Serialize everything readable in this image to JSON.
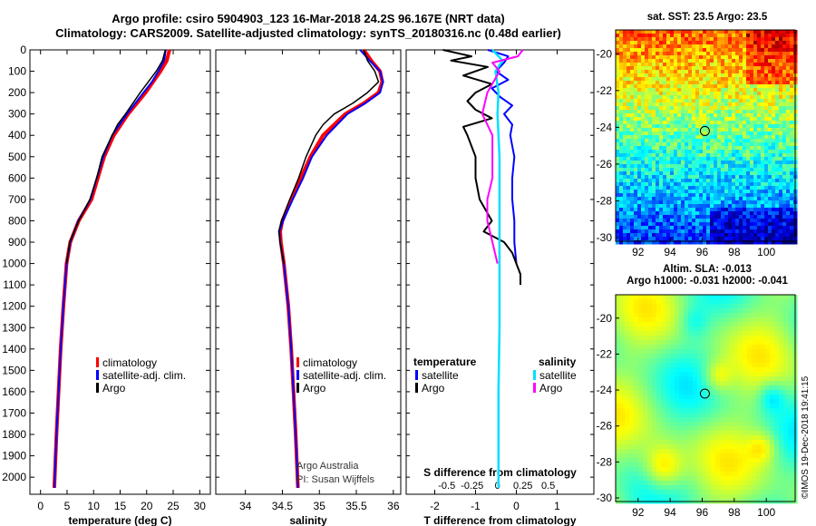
{
  "header": {
    "title_line1": "Argo profile: csiro 5904903_123 16-Mar-2018 24.2S 96.167E (NRT data)",
    "title_line2": "Climatology: CARS2009. Satellite-adjusted climatology: synTS_20180316.nc (0.48d earlier)"
  },
  "maps": {
    "sst_title": "sat. SST: 23.5 Argo: 23.5",
    "sla_title": "Altim. SLA: -0.013",
    "sla_subtitle": "Argo h1000: -0.031 h2000: -0.041",
    "lat_ticks": [
      "-20",
      "-22",
      "-24",
      "-26",
      "-28",
      "-30"
    ],
    "lon_ticks": [
      "92",
      "94",
      "96",
      "98",
      "100"
    ],
    "profile_marker": {
      "lon": 96.167,
      "lat": -24.2
    }
  },
  "credit": "©IMOS 19-Dec-2018 19:41:15",
  "attribution": {
    "line1": "Argo Australia",
    "line2": "PI: Susan Wijffels"
  },
  "colors": {
    "climatology": "#ff0000",
    "satellite": "#0000ff",
    "argo": "#000000",
    "sat_salinity": "#00e0ff",
    "argo_salinity": "#ff00ff"
  },
  "chart_data": [
    {
      "type": "line",
      "title": "",
      "xlabel": "temperature (deg C)",
      "ylabel": "",
      "xlim": [
        -2,
        32
      ],
      "ylim": [
        2080,
        0
      ],
      "xticks": [
        0,
        5,
        10,
        15,
        20,
        25,
        30
      ],
      "yticks": [
        0,
        100,
        200,
        300,
        400,
        500,
        600,
        700,
        800,
        900,
        1000,
        1100,
        1200,
        1300,
        1400,
        1500,
        1600,
        1700,
        1800,
        1900,
        2000
      ],
      "legend": [
        "climatology",
        "satellite-adj. clim.",
        "Argo"
      ],
      "series": [
        {
          "name": "climatology",
          "depth": [
            0,
            50,
            100,
            150,
            200,
            300,
            400,
            500,
            600,
            700,
            800,
            900,
            1000,
            1200,
            1400,
            1600,
            1800,
            2050
          ],
          "values": [
            24.3,
            23.8,
            22.6,
            21.2,
            19.8,
            16.5,
            13.8,
            12.0,
            10.8,
            9.6,
            7.2,
            5.6,
            4.9,
            4.3,
            3.8,
            3.4,
            3.0,
            2.6
          ]
        },
        {
          "name": "satellite-adj. clim.",
          "depth": [
            0,
            50,
            100,
            150,
            200,
            300,
            400,
            500,
            600,
            700,
            800,
            900,
            1000,
            1200,
            1400,
            1600,
            1800,
            2050
          ],
          "values": [
            23.6,
            23.3,
            22.2,
            21.0,
            19.4,
            16.3,
            13.5,
            11.8,
            10.6,
            9.4,
            7.1,
            5.6,
            4.9,
            4.3,
            3.8,
            3.4,
            3.0,
            2.6
          ]
        },
        {
          "name": "Argo",
          "depth": [
            0,
            50,
            100,
            150,
            200,
            300,
            350,
            400,
            500,
            600,
            700,
            800,
            900,
            1000
          ],
          "values": [
            23.5,
            23.0,
            21.8,
            20.3,
            18.8,
            16.0,
            14.5,
            13.5,
            11.6,
            10.6,
            9.3,
            7.2,
            5.5,
            4.9
          ]
        }
      ]
    },
    {
      "type": "line",
      "title": "",
      "xlabel": "salinity",
      "ylabel": "",
      "xlim": [
        33.6,
        36.1
      ],
      "ylim": [
        2080,
        0
      ],
      "xticks": [
        34,
        34.5,
        35,
        35.5,
        36
      ],
      "legend": [
        "climatology",
        "satellite-adj. clim.",
        "Argo"
      ],
      "series": [
        {
          "name": "climatology",
          "depth": [
            0,
            50,
            100,
            150,
            200,
            250,
            300,
            400,
            500,
            600,
            700,
            800,
            850,
            900,
            1000,
            1200,
            1400,
            1600,
            1800,
            2050
          ],
          "values": [
            35.6,
            35.7,
            35.82,
            35.85,
            35.8,
            35.6,
            35.35,
            35.05,
            34.88,
            34.75,
            34.62,
            34.5,
            34.47,
            34.48,
            34.52,
            34.58,
            34.62,
            34.65,
            34.68,
            34.71
          ]
        },
        {
          "name": "satellite-adj. clim.",
          "depth": [
            0,
            50,
            100,
            150,
            200,
            250,
            300,
            400,
            500,
            600,
            700,
            800,
            850,
            900,
            1000,
            1200,
            1400,
            1600,
            1800,
            2050
          ],
          "values": [
            35.55,
            35.68,
            35.82,
            35.86,
            35.82,
            35.62,
            35.38,
            35.1,
            34.9,
            34.78,
            34.64,
            34.51,
            34.46,
            34.47,
            34.52,
            34.58,
            34.62,
            34.65,
            34.68,
            34.71
          ]
        },
        {
          "name": "Argo",
          "depth": [
            0,
            50,
            100,
            150,
            200,
            250,
            300,
            350,
            400,
            500,
            600,
            700,
            800,
            850,
            900,
            1000
          ],
          "values": [
            35.6,
            35.65,
            35.75,
            35.8,
            35.65,
            35.45,
            35.2,
            35.05,
            34.95,
            34.82,
            34.72,
            34.6,
            34.49,
            34.45,
            34.47,
            34.52
          ]
        }
      ]
    },
    {
      "type": "line",
      "title": "",
      "xlabel": "T difference from climatology",
      "x2label": "S difference from climatology",
      "xlim": [
        -2.7,
        1.9
      ],
      "x2lim": [
        -0.9,
        0.95
      ],
      "ylim": [
        2080,
        0
      ],
      "xticks": [
        -2,
        -1,
        0,
        1
      ],
      "x2ticks": [
        -0.5,
        -0.25,
        0,
        0.25,
        0.5
      ],
      "x2ticklabels": [
        "-0.5",
        "-0.25",
        "0",
        "0.25",
        "0.5"
      ],
      "legend_temperature_title": "temperature",
      "legend_salinity_title": "salinity",
      "legend_temperature": [
        "satellite",
        "Argo"
      ],
      "legend_salinity": [
        "satellite",
        "Argo"
      ],
      "series": [
        {
          "name": "T satellite",
          "axis": "T",
          "depth": [
            0,
            30,
            60,
            100,
            140,
            180,
            220,
            260,
            300,
            350,
            400,
            450,
            500,
            600,
            700,
            800,
            900,
            1000
          ],
          "values": [
            -0.7,
            -0.2,
            -0.3,
            -0.5,
            -0.2,
            -0.6,
            -0.4,
            -0.1,
            -0.3,
            -0.1,
            -0.15,
            -0.1,
            -0.05,
            -0.1,
            -0.1,
            -0.05,
            -0.05,
            0
          ]
        },
        {
          "name": "T Argo",
          "axis": "T",
          "depth": [
            0,
            30,
            50,
            80,
            120,
            160,
            200,
            240,
            280,
            320,
            360,
            400,
            500,
            600,
            700,
            800,
            850,
            900,
            950,
            1000,
            1050,
            1100
          ],
          "values": [
            -1.8,
            -1.1,
            -1.6,
            -0.7,
            -1.3,
            -0.6,
            -1.0,
            -1.2,
            -1.0,
            -0.6,
            -1.3,
            -1.2,
            -1.0,
            -1.0,
            -0.9,
            -0.6,
            -0.8,
            -0.3,
            -0.1,
            0,
            0.1,
            0.1
          ]
        },
        {
          "name": "S satellite",
          "axis": "S",
          "depth": [
            0,
            50,
            100,
            200,
            300,
            500,
            800,
            1000,
            1300,
            1600,
            1900,
            2050
          ],
          "values": [
            -0.05,
            0.05,
            -0.02,
            0.01,
            0,
            0.02,
            0.02,
            0.02,
            0.02,
            0.01,
            0.01,
            0.01
          ]
        },
        {
          "name": "S Argo",
          "axis": "S",
          "depth": [
            0,
            30,
            60,
            100,
            200,
            300,
            400,
            500,
            600,
            700,
            800,
            900,
            1000
          ],
          "values": [
            0.25,
            0.2,
            -0.05,
            0.02,
            -0.1,
            -0.15,
            -0.05,
            -0.05,
            -0.05,
            -0.1,
            -0.1,
            -0.05,
            0
          ]
        }
      ]
    }
  ]
}
